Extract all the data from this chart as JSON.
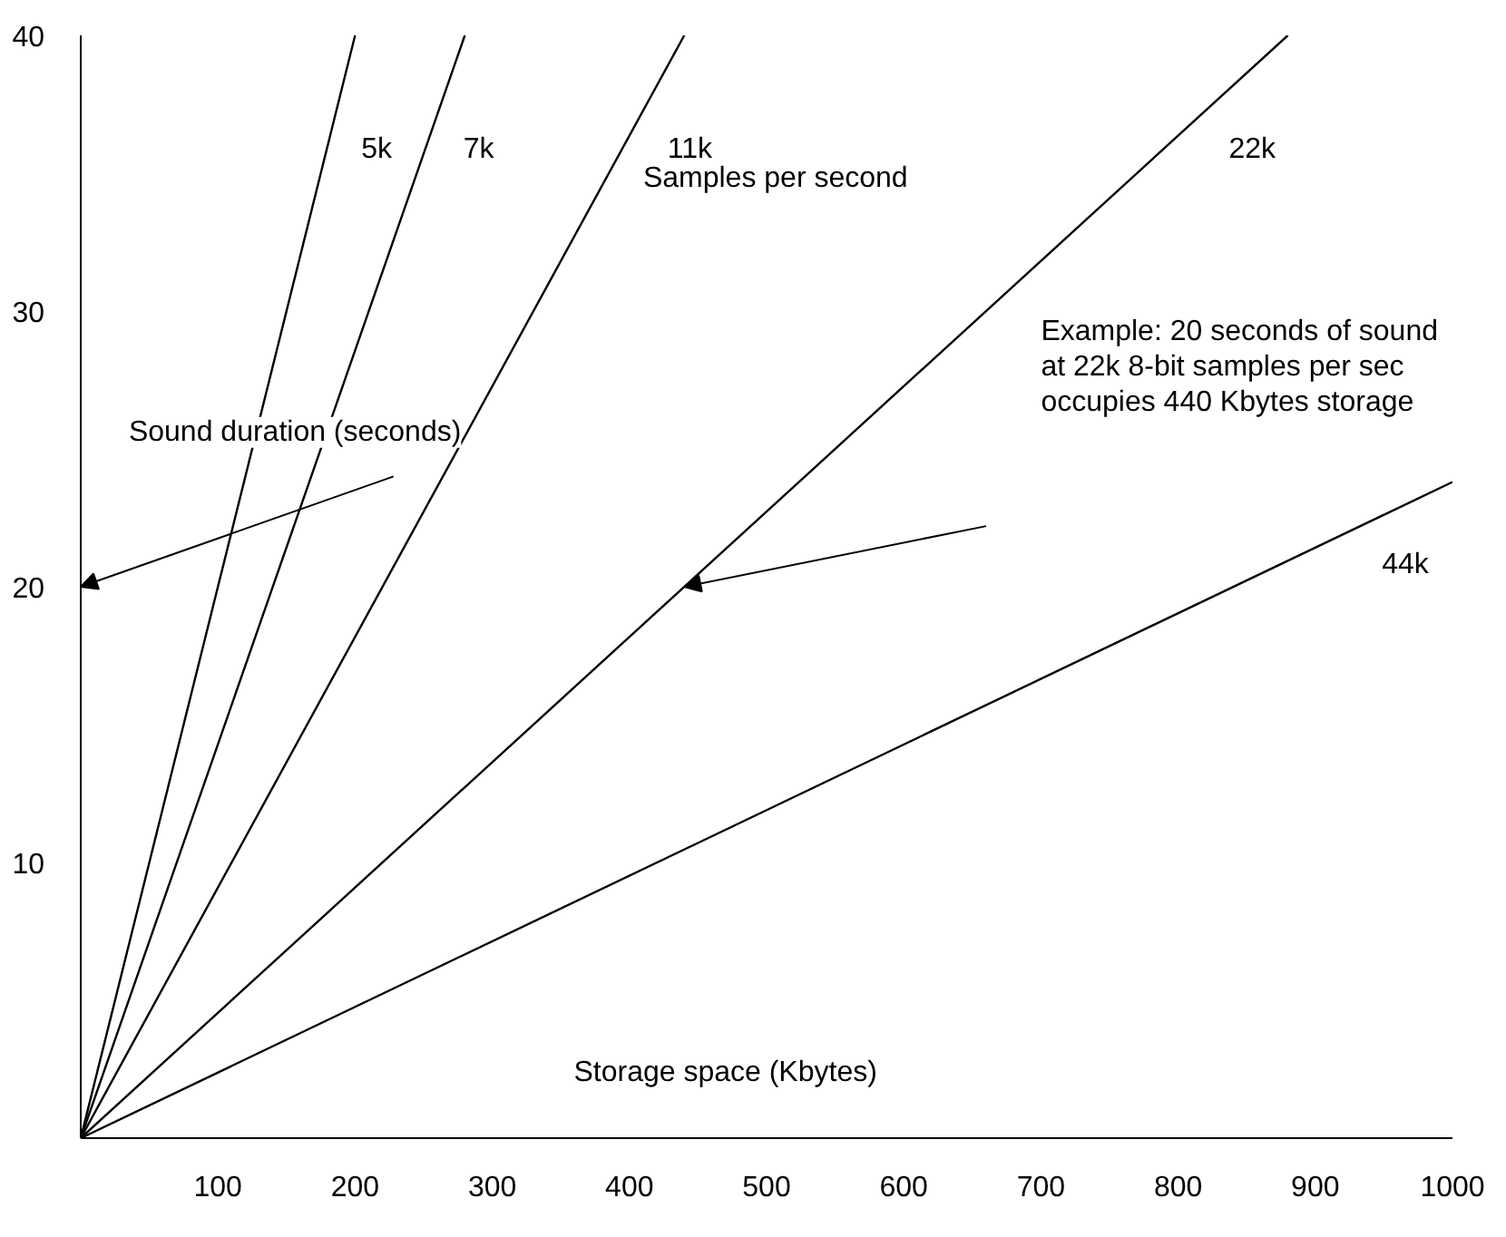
{
  "chart_data": {
    "type": "line",
    "xlabel": "Storage space (Kbytes)",
    "ylabel": "Sound duration (seconds)",
    "series": [
      {
        "name": "5k",
        "color": "#000000",
        "x": [
          0,
          200
        ],
        "values": [
          0,
          40
        ]
      },
      {
        "name": "7k",
        "color": "#000000",
        "x": [
          0,
          280
        ],
        "values": [
          0,
          40
        ]
      },
      {
        "name": "11k",
        "color": "#000000",
        "x": [
          0,
          440
        ],
        "values": [
          0,
          40
        ]
      },
      {
        "name": "22k",
        "color": "#000000",
        "x": [
          0,
          880
        ],
        "values": [
          0,
          40
        ]
      },
      {
        "name": "44k",
        "color": "#000000",
        "x": [
          0,
          1000
        ],
        "values": [
          0,
          23.8
        ]
      }
    ],
    "annotations": [
      "Samples per second",
      "Example: 20 seconds of sound\nat 22k 8-bit samples per sec\noccupies 440 Kbytes storage"
    ],
    "xlim": [
      0,
      1000
    ],
    "ylim": [
      0,
      40
    ],
    "xticks": [
      100,
      200,
      300,
      400,
      500,
      600,
      700,
      800,
      900,
      1000
    ],
    "yticks": [
      10,
      20,
      30,
      40
    ],
    "grid": false,
    "marker": "none",
    "line_style": "solid"
  }
}
